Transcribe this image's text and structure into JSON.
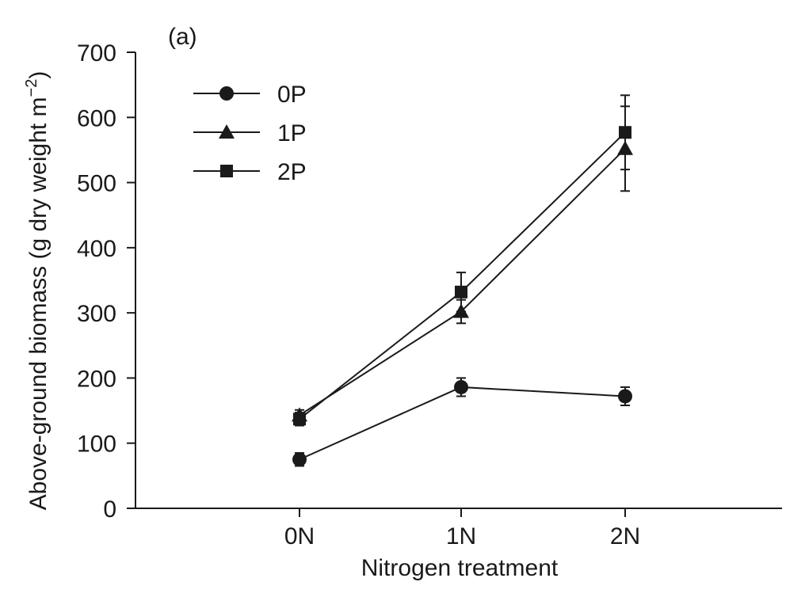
{
  "chart_data": {
    "type": "line",
    "panel_label": "(a)",
    "xlabel": "Nitrogen treatment",
    "ylabel_main": "Above-ground biomass (g dry weight m",
    "ylabel_sup": "−2",
    "ylabel_close": ")",
    "categories": [
      "0N",
      "1N",
      "2N"
    ],
    "ylim": [
      0,
      700
    ],
    "yticks": [
      0,
      100,
      200,
      300,
      400,
      500,
      600,
      700
    ],
    "yticklabels": [
      "0",
      "100",
      "200",
      "300",
      "400",
      "500",
      "600",
      "700"
    ],
    "grid": false,
    "legend_position": "top-left",
    "series": [
      {
        "name": "0P",
        "marker": "circle",
        "values": [
          75,
          186,
          172
        ],
        "errors": [
          10,
          14,
          14
        ]
      },
      {
        "name": "1P",
        "marker": "triangle",
        "values": [
          143,
          302,
          552
        ],
        "errors": [
          8,
          18,
          65
        ]
      },
      {
        "name": "2P",
        "marker": "square",
        "values": [
          137,
          332,
          577
        ],
        "errors": [
          10,
          30,
          57
        ]
      }
    ]
  }
}
